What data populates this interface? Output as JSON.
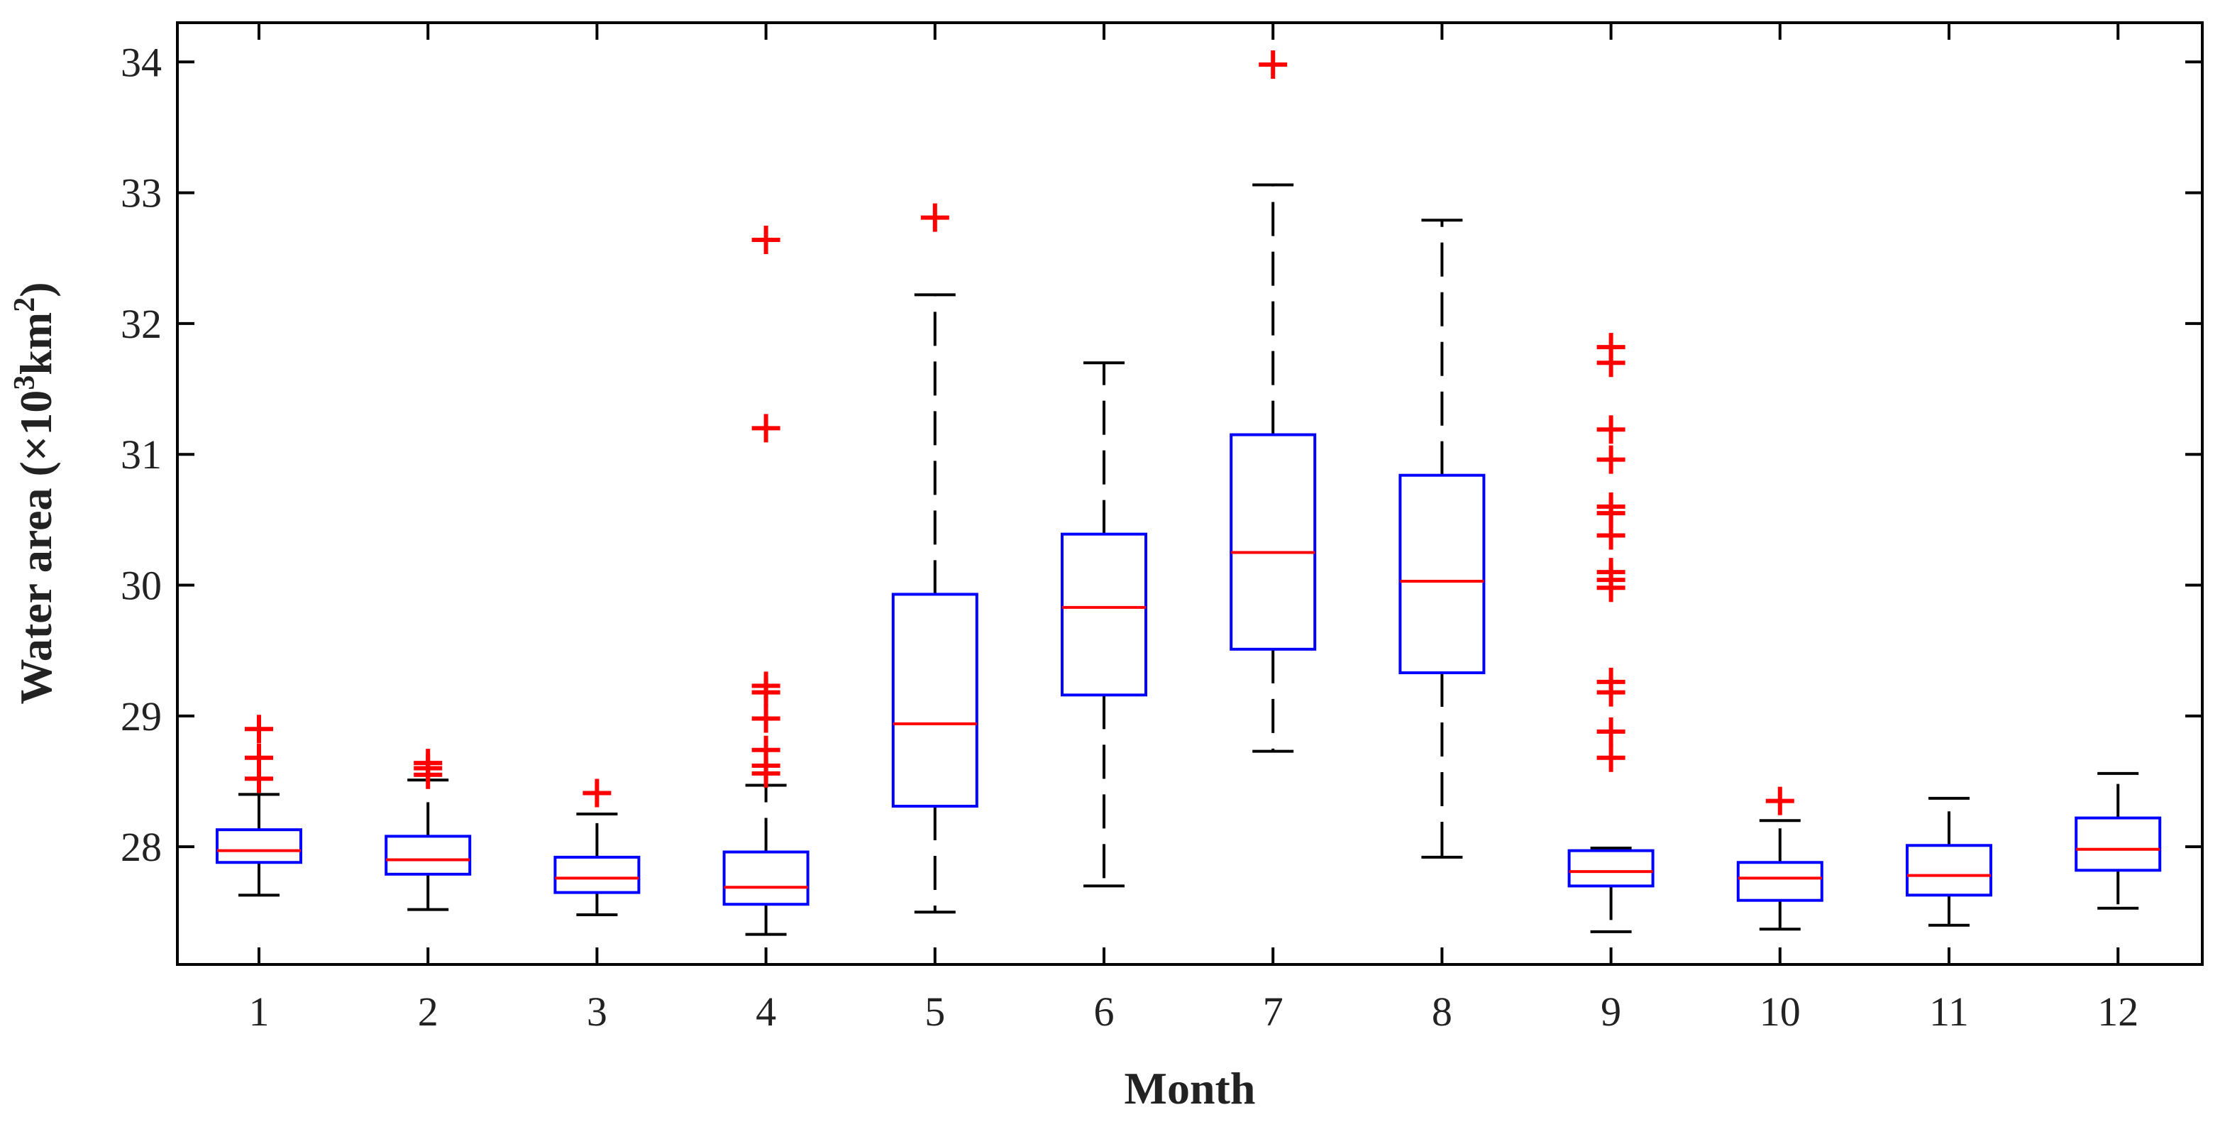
{
  "chart_data": {
    "type": "boxplot",
    "title": "",
    "xlabel": "Month",
    "ylabel": {
      "prefix": "Water area (×10",
      "exp1": "3",
      "mid": "km",
      "exp2": "2",
      "suffix": ")"
    },
    "ylim": [
      27.1,
      34.3
    ],
    "yticks": [
      28,
      29,
      30,
      31,
      32,
      33,
      34
    ],
    "ytick_labels": [
      "28",
      "29",
      "30",
      "31",
      "32",
      "33",
      "34"
    ],
    "categories": [
      "1",
      "2",
      "3",
      "4",
      "5",
      "6",
      "7",
      "8",
      "9",
      "10",
      "11",
      "12"
    ],
    "boxes": [
      {
        "month": "1",
        "whisker_low": 27.63,
        "q1": 27.88,
        "median": 27.97,
        "q3": 28.13,
        "whisker_high": 28.4,
        "outliers": [
          28.52,
          28.68,
          28.9
        ]
      },
      {
        "month": "2",
        "whisker_low": 27.52,
        "q1": 27.79,
        "median": 27.9,
        "q3": 28.08,
        "whisker_high": 28.51,
        "outliers": [
          28.55,
          28.6,
          28.64
        ]
      },
      {
        "month": "3",
        "whisker_low": 27.48,
        "q1": 27.65,
        "median": 27.76,
        "q3": 27.92,
        "whisker_high": 28.25,
        "outliers": [
          28.41
        ]
      },
      {
        "month": "4",
        "whisker_low": 27.33,
        "q1": 27.56,
        "median": 27.69,
        "q3": 27.96,
        "whisker_high": 28.47,
        "outliers": [
          28.56,
          28.62,
          28.74,
          28.98,
          29.18,
          29.23,
          31.2,
          32.64
        ]
      },
      {
        "month": "5",
        "whisker_low": 27.5,
        "q1": 28.31,
        "median": 28.94,
        "q3": 29.93,
        "whisker_high": 32.22,
        "outliers": [
          32.81
        ]
      },
      {
        "month": "6",
        "whisker_low": 27.7,
        "q1": 29.16,
        "median": 29.83,
        "q3": 30.39,
        "whisker_high": 31.7,
        "outliers": []
      },
      {
        "month": "7",
        "whisker_low": 28.73,
        "q1": 29.51,
        "median": 30.25,
        "q3": 31.15,
        "whisker_high": 33.06,
        "outliers": [
          33.98
        ]
      },
      {
        "month": "8",
        "whisker_low": 27.92,
        "q1": 29.33,
        "median": 30.03,
        "q3": 30.84,
        "whisker_high": 32.79,
        "outliers": []
      },
      {
        "month": "9",
        "whisker_low": 27.35,
        "q1": 27.7,
        "median": 27.81,
        "q3": 27.97,
        "whisker_high": 27.99,
        "outliers": [
          28.68,
          28.88,
          29.18,
          29.26,
          29.98,
          30.04,
          30.1,
          30.38,
          30.55,
          30.6,
          30.96,
          31.19,
          31.7,
          31.82
        ]
      },
      {
        "month": "10",
        "whisker_low": 27.37,
        "q1": 27.59,
        "median": 27.76,
        "q3": 27.88,
        "whisker_high": 28.2,
        "outliers": [
          28.35
        ]
      },
      {
        "month": "11",
        "whisker_low": 27.4,
        "q1": 27.63,
        "median": 27.78,
        "q3": 28.01,
        "whisker_high": 28.37,
        "outliers": []
      },
      {
        "month": "12",
        "whisker_low": 27.53,
        "q1": 27.82,
        "median": 27.98,
        "q3": 28.22,
        "whisker_high": 28.56,
        "outliers": []
      }
    ],
    "colors": {
      "box": "#0000ff",
      "median": "#ff0000",
      "whisker": "#000000",
      "outlier": "#ff0000",
      "axis": "#000000"
    },
    "grid": false,
    "legend": "none"
  }
}
